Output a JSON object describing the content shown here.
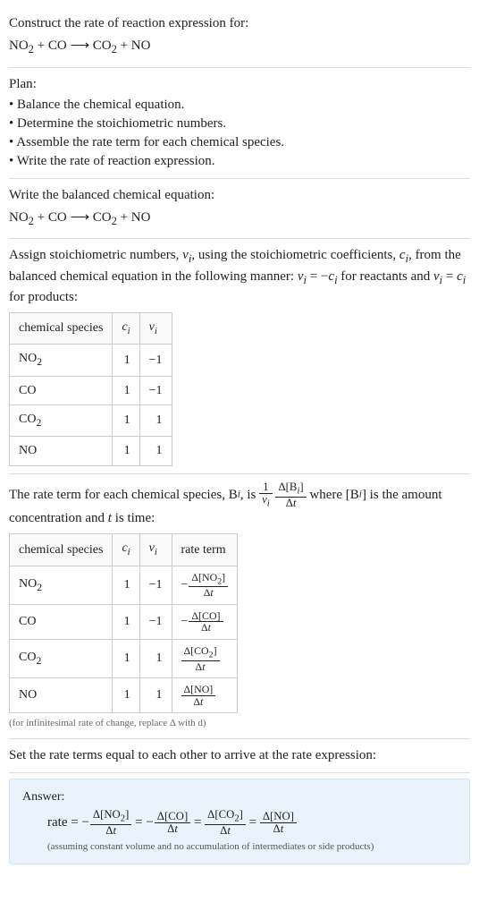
{
  "intro": {
    "prompt": "Construct the rate of reaction expression for:",
    "equation_html": "NO<sub>2</sub> + CO ⟶ CO<sub>2</sub> + NO"
  },
  "plan": {
    "heading": "Plan:",
    "items": [
      "Balance the chemical equation.",
      "Determine the stoichiometric numbers.",
      "Assemble the rate term for each chemical species.",
      "Write the rate of reaction expression."
    ]
  },
  "balanced": {
    "text": "Write the balanced chemical equation:",
    "equation_html": "NO<sub>2</sub> + CO ⟶ CO<sub>2</sub> + NO"
  },
  "stoich_assign": {
    "text_html": "Assign stoichiometric numbers, <i>ν<sub>i</sub></i>, using the stoichiometric coefficients, <i>c<sub>i</sub></i>, from the balanced chemical equation in the following manner: <i>ν<sub>i</sub></i> = −<i>c<sub>i</sub></i> for reactants and <i>ν<sub>i</sub></i> = <i>c<sub>i</sub></i> for products:",
    "headers": {
      "species": "chemical species",
      "ci": "c_i",
      "vi": "ν_i"
    },
    "rows": [
      {
        "species_html": "NO<sub>2</sub>",
        "ci": "1",
        "vi": "−1"
      },
      {
        "species_html": "CO",
        "ci": "1",
        "vi": "−1"
      },
      {
        "species_html": "CO<sub>2</sub>",
        "ci": "1",
        "vi": "1"
      },
      {
        "species_html": "NO",
        "ci": "1",
        "vi": "1"
      }
    ]
  },
  "rate_term": {
    "text_pre": "The rate term for each chemical species, B",
    "text_isub": "i",
    "text_mid1": ", is ",
    "frac1_num_html": "1",
    "frac1_den_html": "<i>ν<sub>i</sub></i>",
    "frac2_num_html": "Δ[B<sub><i>i</i></sub>]",
    "frac2_den_html": "Δ<i>t</i>",
    "text_mid2": " where [B",
    "text_mid3": "] is the amount concentration and ",
    "t": "t",
    "text_post": " is time:",
    "headers": {
      "species": "chemical species",
      "ci": "c_i",
      "vi": "ν_i",
      "rate": "rate term"
    },
    "rows": [
      {
        "species_html": "NO<sub>2</sub>",
        "ci": "1",
        "vi": "−1",
        "rate_num_html": "Δ[NO<sub>2</sub>]",
        "rate_den_html": "Δ<i>t</i>",
        "neg": true
      },
      {
        "species_html": "CO",
        "ci": "1",
        "vi": "−1",
        "rate_num_html": "Δ[CO]",
        "rate_den_html": "Δ<i>t</i>",
        "neg": true
      },
      {
        "species_html": "CO<sub>2</sub>",
        "ci": "1",
        "vi": "1",
        "rate_num_html": "Δ[CO<sub>2</sub>]",
        "rate_den_html": "Δ<i>t</i>",
        "neg": false
      },
      {
        "species_html": "NO",
        "ci": "1",
        "vi": "1",
        "rate_num_html": "Δ[NO]",
        "rate_den_html": "Δ<i>t</i>",
        "neg": false
      }
    ],
    "footnote": "(for infinitesimal rate of change, replace Δ with d)"
  },
  "final": {
    "text": "Set the rate terms equal to each other to arrive at the rate expression:"
  },
  "answer": {
    "label": "Answer:",
    "lead": "rate = ",
    "terms": [
      {
        "neg": true,
        "num_html": "Δ[NO<sub>2</sub>]",
        "den_html": "Δ<i>t</i>"
      },
      {
        "neg": true,
        "num_html": "Δ[CO]",
        "den_html": "Δ<i>t</i>"
      },
      {
        "neg": false,
        "num_html": "Δ[CO<sub>2</sub>]",
        "den_html": "Δ<i>t</i>"
      },
      {
        "neg": false,
        "num_html": "Δ[NO]",
        "den_html": "Δ<i>t</i>"
      }
    ],
    "foot": "(assuming constant volume and no accumulation of intermediates or side products)"
  }
}
